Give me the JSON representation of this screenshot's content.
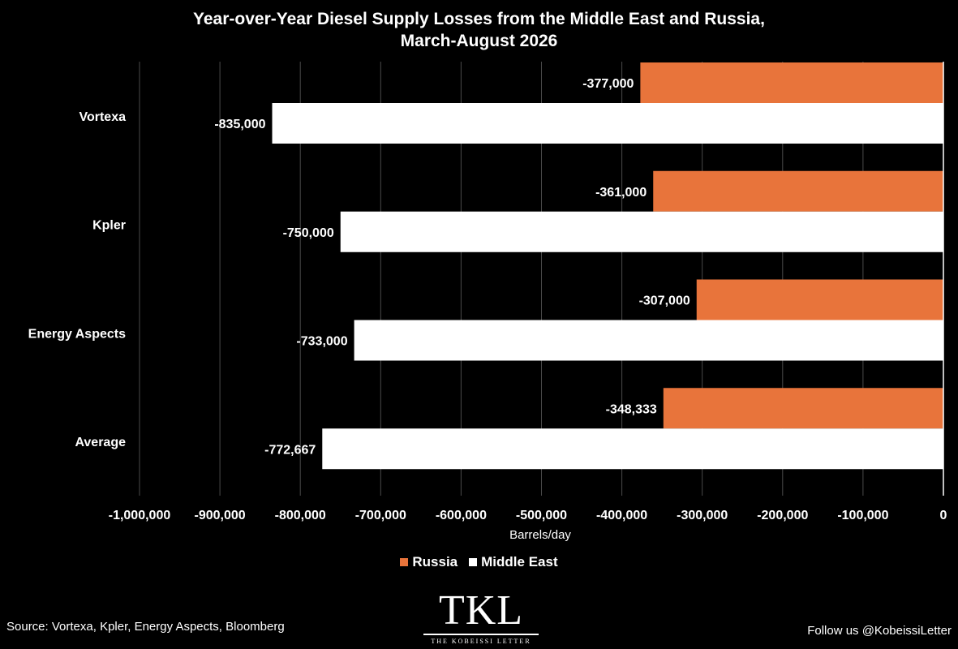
{
  "chart_data": {
    "type": "bar",
    "orientation": "horizontal",
    "title": "Year-over-Year Diesel Supply Losses from the Middle East and Russia, March-August 2026",
    "title_lines": [
      "Year-over-Year Diesel Supply Losses from the Middle East and Russia,",
      "March-August 2026"
    ],
    "categories": [
      "Vortexa",
      "Kpler",
      "Energy Aspects",
      "Average"
    ],
    "series": [
      {
        "name": "Russia",
        "color": "#E8743B",
        "values": [
          -377000,
          -361000,
          -307000,
          -348333
        ],
        "labels": [
          "-377,000",
          "-361,000",
          "-307,000",
          "-348,333"
        ]
      },
      {
        "name": "Middle East",
        "color": "#FFFFFF",
        "values": [
          -835000,
          -750000,
          -733000,
          -772667
        ],
        "labels": [
          "-835,000",
          "-750,000",
          "-733,000",
          "-772,667"
        ]
      }
    ],
    "xlabel": "Barrels/day",
    "ylabel": "",
    "xlim": [
      -1000000,
      0
    ],
    "ticks": [
      -1000000,
      -900000,
      -800000,
      -700000,
      -600000,
      -500000,
      -400000,
      -300000,
      -200000,
      -100000,
      0
    ],
    "tick_labels": [
      "-1,000,000",
      "-900,000",
      "-800,000",
      "-700,000",
      "-600,000",
      "-500,000",
      "-400,000",
      "-300,000",
      "-200,000",
      "-100,000",
      "0"
    ],
    "grid": true,
    "legend_position": "bottom"
  },
  "footer": {
    "source": "Source: Vortexa, Kpler, Energy Aspects, Bloomberg",
    "follow": "Follow us @KobeissiLetter",
    "logo_mark": "TKL",
    "logo_sub": "THE KOBEISSI LETTER"
  }
}
